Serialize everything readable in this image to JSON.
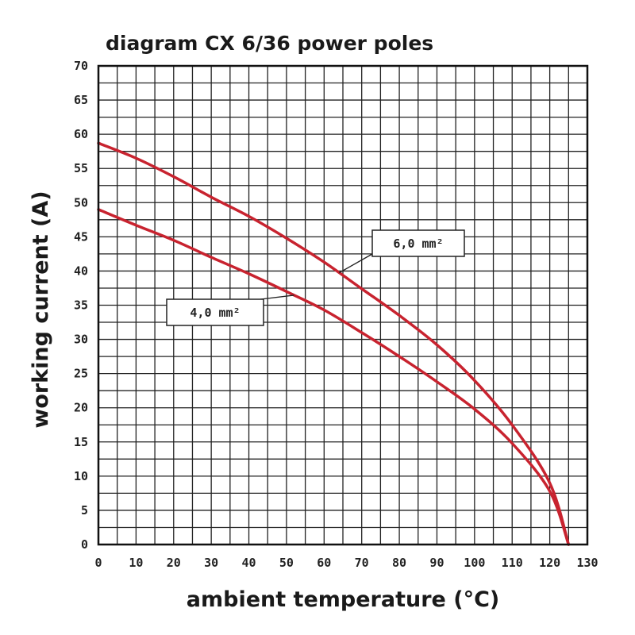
{
  "chart_data": {
    "type": "line",
    "title": "diagram CX 6/36 power poles",
    "xlabel": "ambient temperature (°C)",
    "ylabel": "working current (A)",
    "xlim": [
      0,
      130
    ],
    "ylim": [
      0,
      70
    ],
    "x_ticks": [
      "0",
      "10",
      "20",
      "30",
      "40",
      "50",
      "60",
      "70",
      "80",
      "90",
      "100",
      "110",
      "120",
      "130"
    ],
    "y_ticks": [
      "0",
      "5",
      "10",
      "15",
      "20",
      "25",
      "30",
      "35",
      "40",
      "45",
      "50",
      "55",
      "60",
      "65",
      "70"
    ],
    "grid": true,
    "colors": {
      "curve": "#c8232f",
      "grid": "#222222",
      "frame": "#111111"
    },
    "series": [
      {
        "name": "6,0 mm²",
        "x": [
          0,
          10,
          20,
          30,
          40,
          50,
          60,
          70,
          80,
          90,
          100,
          110,
          120,
          125
        ],
        "y": [
          58.7,
          56.5,
          53.8,
          50.8,
          48.0,
          44.8,
          41.3,
          37.4,
          33.5,
          29.2,
          24.0,
          17.5,
          9.0,
          0
        ]
      },
      {
        "name": "4,0 mm²",
        "x": [
          0,
          10,
          20,
          30,
          40,
          50,
          60,
          70,
          80,
          90,
          100,
          110,
          120,
          125
        ],
        "y": [
          49.0,
          46.7,
          44.5,
          42.0,
          39.6,
          37.0,
          34.3,
          31.0,
          27.5,
          23.8,
          19.8,
          14.8,
          7.8,
          0
        ]
      }
    ]
  }
}
